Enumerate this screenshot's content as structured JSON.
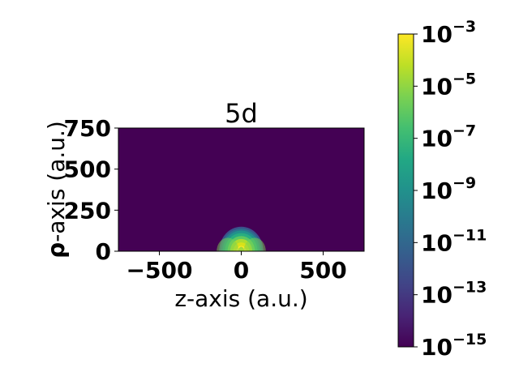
{
  "chart_data": {
    "type": "heatmap",
    "title": "5d",
    "xlabel": "z-axis (a.u.)",
    "ylabel": {
      "bold_symbol": "ρ",
      "text": "-axis  (a.u.)"
    },
    "xlim": [
      -750,
      750
    ],
    "ylim": [
      0,
      750
    ],
    "x_ticks": [
      {
        "value": -500,
        "label": "−500"
      },
      {
        "value": 0,
        "label": "0"
      },
      {
        "value": 500,
        "label": "500"
      }
    ],
    "y_ticks": [
      {
        "value": 0,
        "label": "0"
      },
      {
        "value": 250,
        "label": "250"
      },
      {
        "value": 500,
        "label": "500"
      },
      {
        "value": 750,
        "label": "750"
      }
    ],
    "colormap": "viridis",
    "color_scale": "log",
    "clim": [
      1e-15,
      0.001
    ],
    "colorbar_ticks": [
      {
        "value": 0.001,
        "base": "10",
        "exp": "−3"
      },
      {
        "value": 1e-05,
        "base": "10",
        "exp": "−5"
      },
      {
        "value": 1e-07,
        "base": "10",
        "exp": "−7"
      },
      {
        "value": 1e-09,
        "base": "10",
        "exp": "−9"
      },
      {
        "value": 1e-11,
        "base": "10",
        "exp": "−11"
      },
      {
        "value": 1e-13,
        "base": "10",
        "exp": "−13"
      },
      {
        "value": 1e-15,
        "base": "10",
        "exp": "−15"
      }
    ],
    "density": {
      "description_of_region": "nonzero density concentrated near origin",
      "extent_radius": 150,
      "peak_value": 0.001,
      "background_value": 1e-15
    }
  }
}
